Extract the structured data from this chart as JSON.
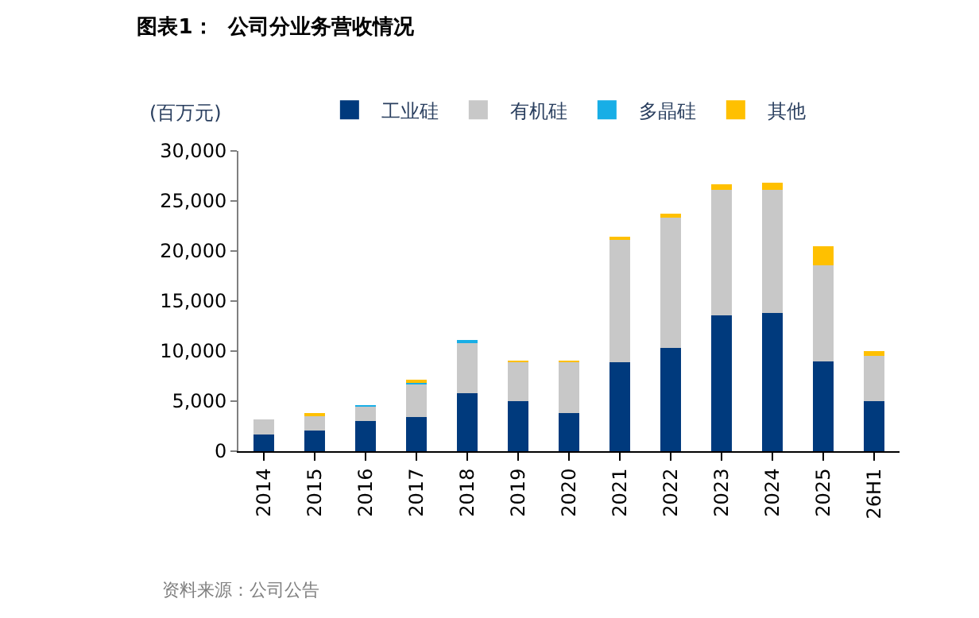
{
  "chart_data": {
    "type": "bar",
    "stacked": true,
    "title": "图表1：  公司分业务营收情况",
    "ylabel": "(百万元)",
    "categories": [
      "2014",
      "2015",
      "2016",
      "2017",
      "2018",
      "2019",
      "2020",
      "2021",
      "2022",
      "2023",
      "2024",
      "2025",
      "26H1"
    ],
    "series": [
      {
        "name": "工业硅",
        "color": "#003a7d",
        "values": [
          1700,
          2100,
          3000,
          3400,
          5800,
          5000,
          3800,
          8900,
          10300,
          13600,
          13800,
          9000,
          5000
        ]
      },
      {
        "name": "有机硅",
        "color": "#c8c8c8",
        "values": [
          1500,
          1500,
          1500,
          3400,
          5100,
          3900,
          5100,
          12300,
          13000,
          12500,
          12300,
          9600,
          4500
        ]
      },
      {
        "name": "多晶硅",
        "color": "#18aee6",
        "values": [
          0,
          0,
          100,
          100,
          200,
          0,
          0,
          0,
          0,
          0,
          0,
          0,
          0
        ]
      },
      {
        "name": "其他",
        "color": "#ffc000",
        "values": [
          0,
          100,
          0,
          100,
          0,
          100,
          100,
          200,
          400,
          600,
          700,
          1900,
          500
        ]
      }
    ],
    "ylim": [
      0,
      30000
    ],
    "yticks": [
      {
        "value": 0,
        "label": "0"
      },
      {
        "value": 5000,
        "label": "5,000"
      },
      {
        "value": 10000,
        "label": "10,000"
      },
      {
        "value": 15000,
        "label": "15,000"
      },
      {
        "value": 20000,
        "label": "20,000"
      },
      {
        "value": 25000,
        "label": "25,000"
      },
      {
        "value": 30000,
        "label": "30,000"
      }
    ],
    "legend": "top",
    "annotations": [
      "资料来源：公司公告"
    ]
  }
}
